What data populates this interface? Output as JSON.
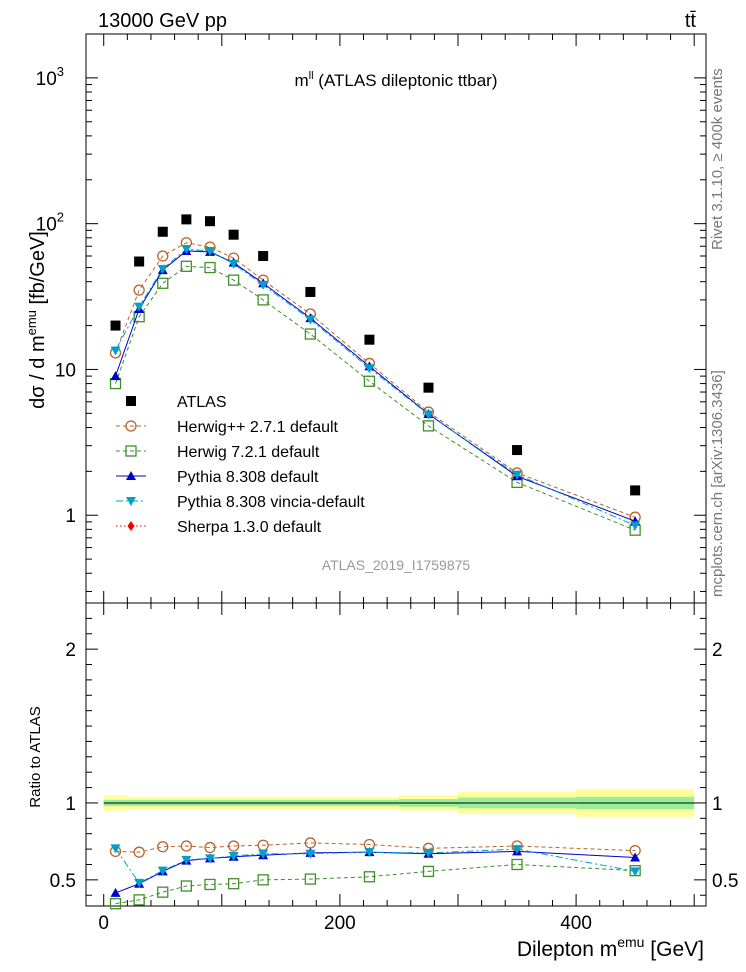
{
  "header": {
    "energy_label": "13000 GeV pp",
    "process_label": "tt̄"
  },
  "side_labels": {
    "rivet": "Rivet 3.1.10, ≥ 400k events",
    "source": "mcplots.cern.ch [arXiv:1306.3436]"
  },
  "chart_data": [
    {
      "type": "scatter",
      "panel": "main",
      "title": "m^ll (ATLAS dileptonic ttbar)",
      "title_main": "m",
      "title_sup": "ll",
      "title_rest": " (ATLAS dileptonic ttbar)",
      "ylabel": "dσ / d m^emu [fb/GeV]",
      "ylabel_main": "dσ / d m",
      "ylabel_sup": "emu",
      "ylabel_rest": " [fb/GeV]",
      "yscale": "log",
      "ylim": [
        0.25,
        2000
      ],
      "xlim": [
        -15,
        510
      ],
      "ytick_labels": [
        {
          "value": 1,
          "label": "1"
        },
        {
          "value": 10,
          "label": "10"
        },
        {
          "value": 100,
          "label": "10",
          "sup": "2"
        },
        {
          "value": 1000,
          "label": "10",
          "sup": "3"
        }
      ],
      "watermark": "ATLAS_2019_I1759875",
      "x": [
        10,
        30,
        50,
        70,
        90,
        110,
        135,
        175,
        225,
        275,
        350,
        450
      ],
      "series": [
        {
          "name": "ATLAS",
          "marker": "square-filled",
          "color": "#000000",
          "line": "none",
          "values": [
            20,
            55,
            88,
            107,
            104,
            84,
            60,
            34,
            16,
            7.5,
            2.8,
            1.48
          ]
        },
        {
          "name": "Herwig++ 2.7.1 default",
          "marker": "circle-open",
          "color": "#b8642a",
          "line": "dashed",
          "values": [
            13,
            35,
            60,
            74,
            69,
            58,
            41,
            24,
            11,
            5.1,
            1.95,
            0.97
          ]
        },
        {
          "name": "Herwig 7.2.1 default",
          "marker": "square-open",
          "color": "#3f8f2a",
          "line": "dashed",
          "values": [
            8,
            23,
            39,
            51,
            50,
            41,
            30,
            17.5,
            8.3,
            4.1,
            1.68,
            0.79
          ]
        },
        {
          "name": "Pythia 8.308 default",
          "marker": "triangle-up",
          "color": "#0000cc",
          "line": "solid",
          "values": [
            9,
            26,
            48,
            65,
            64,
            54,
            39,
            22.5,
            10.5,
            4.95,
            1.85,
            0.91
          ]
        },
        {
          "name": "Pythia 8.308 vincia-default",
          "marker": "triangle-down",
          "color": "#00a0c8",
          "line": "dashdot",
          "values": [
            13.5,
            27,
            49,
            67,
            65,
            53,
            38,
            22,
            10.2,
            4.9,
            1.9,
            0.85
          ]
        },
        {
          "name": "Sherpa 1.3.0 default",
          "marker": "diamond",
          "color": "#ee0000",
          "line": "dotted",
          "values": []
        }
      ]
    },
    {
      "type": "scatter",
      "panel": "ratio",
      "ylabel": "Ratio to ATLAS",
      "xlabel": "Dilepton m^emu [GeV]",
      "xlabel_main": "Dilepton m",
      "xlabel_sup": "emu",
      "xlabel_rest": " [GeV]",
      "ylim": [
        0.33,
        2.3
      ],
      "xlim": [
        -15,
        510
      ],
      "xticks": [
        0,
        200,
        400
      ],
      "yticks": [
        0.5,
        1,
        2
      ],
      "bins": [
        {
          "lo": 0,
          "hi": 20,
          "inner": 0.02,
          "outer": 0.05
        },
        {
          "lo": 20,
          "hi": 250,
          "inner": 0.02,
          "outer": 0.04
        },
        {
          "lo": 250,
          "hi": 300,
          "inner": 0.025,
          "outer": 0.05
        },
        {
          "lo": 300,
          "hi": 400,
          "inner": 0.035,
          "outer": 0.07
        },
        {
          "lo": 400,
          "hi": 500,
          "inner": 0.04,
          "outer": 0.09
        }
      ],
      "x": [
        10,
        30,
        50,
        70,
        90,
        110,
        135,
        175,
        225,
        275,
        350,
        450
      ],
      "series": [
        {
          "name": "Herwig++ 2.7.1 default",
          "values": [
            0.685,
            0.68,
            0.715,
            0.72,
            0.71,
            0.72,
            0.725,
            0.74,
            0.73,
            0.705,
            0.72,
            0.69
          ]
        },
        {
          "name": "Herwig 7.2.1 default",
          "values": [
            0.345,
            0.37,
            0.42,
            0.46,
            0.47,
            0.475,
            0.5,
            0.505,
            0.52,
            0.555,
            0.6,
            0.56
          ]
        },
        {
          "name": "Pythia 8.308 default",
          "values": [
            0.415,
            0.475,
            0.555,
            0.625,
            0.64,
            0.65,
            0.66,
            0.675,
            0.68,
            0.67,
            0.685,
            0.645
          ]
        },
        {
          "name": "Pythia 8.308 vincia-default",
          "values": [
            0.705,
            0.48,
            0.56,
            0.63,
            0.64,
            0.655,
            0.67,
            0.67,
            0.68,
            0.675,
            0.7,
            0.555
          ]
        }
      ]
    }
  ]
}
